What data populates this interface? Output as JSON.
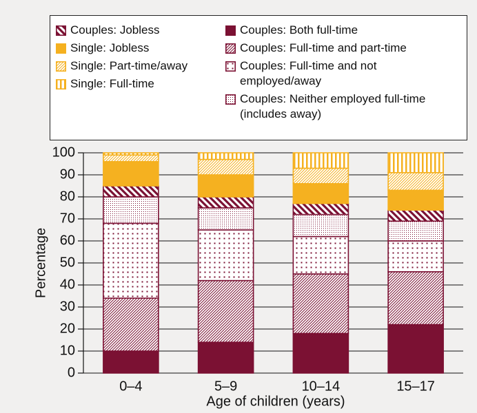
{
  "chart_data": {
    "type": "stacked-bar",
    "categories": [
      "0–4",
      "5–9",
      "10–14",
      "15–17"
    ],
    "series": [
      {
        "name": "Couples: Both full-time",
        "color": "#7b1133",
        "pattern": "solid",
        "values": [
          10,
          14,
          18,
          22
        ]
      },
      {
        "name": "Couples: Full-time and part-time",
        "color": "#7b1133",
        "pattern": "hatch",
        "values": [
          24,
          28,
          27,
          24
        ]
      },
      {
        "name": "Couples: Full-time and not employed/away",
        "color": "#7b1133",
        "pattern": "dots-sparse",
        "values": [
          34,
          23,
          17,
          14
        ]
      },
      {
        "name": "Couples: Neither employed full-time (includes away)",
        "color": "#7b1133",
        "pattern": "dots-dense",
        "values": [
          12,
          10,
          10,
          9
        ]
      },
      {
        "name": "Couples: Jobless",
        "color": "#7b1133",
        "pattern": "thick-stripes",
        "values": [
          5,
          5,
          5,
          5
        ]
      },
      {
        "name": "Single: Jobless",
        "color": "#f5b120",
        "pattern": "solid",
        "values": [
          11,
          10,
          9,
          9
        ]
      },
      {
        "name": "Single: Part-time/away",
        "color": "#f5b120",
        "pattern": "hatch",
        "values": [
          3,
          7,
          7,
          8
        ]
      },
      {
        "name": "Single: Full-time",
        "color": "#f5b120",
        "pattern": "vstripes",
        "values": [
          1,
          3,
          7,
          9
        ]
      }
    ],
    "xlabel": "Age of children (years)",
    "ylabel": "Percentage",
    "ylim": [
      0,
      100
    ],
    "yticks": [
      0,
      10,
      20,
      30,
      40,
      50,
      60,
      70,
      80,
      90,
      100
    ],
    "grid": true
  }
}
